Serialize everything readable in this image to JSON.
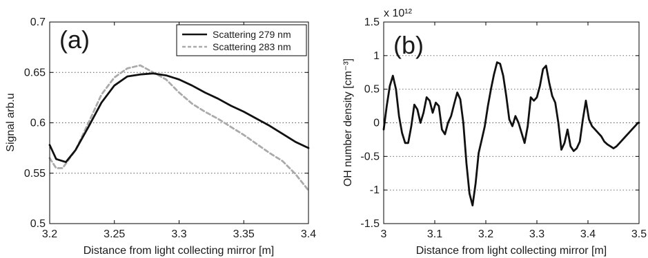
{
  "chart_data": [
    {
      "type": "line",
      "panel_label": "(a)",
      "xlabel": "Distance from light collecting mirror [m]",
      "ylabel": "Signal arb.u",
      "xlim": [
        3.2,
        3.4
      ],
      "ylim": [
        0.5,
        0.7
      ],
      "xticks": [
        "3.2",
        "3.25",
        "3.3",
        "3.35",
        "3.4"
      ],
      "yticks": [
        "0.5",
        "0.55",
        "0.6",
        "0.65",
        "0.7"
      ],
      "grid": "dotted horizontal",
      "legend_position": "top-right",
      "series": [
        {
          "name": "Scattering 279 nm",
          "color": "#111111",
          "style": "solid",
          "x": [
            3.2,
            3.205,
            3.2125,
            3.22,
            3.23,
            3.24,
            3.25,
            3.26,
            3.27,
            3.28,
            3.29,
            3.3,
            3.31,
            3.32,
            3.33,
            3.34,
            3.35,
            3.36,
            3.37,
            3.38,
            3.39,
            3.4
          ],
          "y": [
            0.578,
            0.564,
            0.561,
            0.573,
            0.596,
            0.62,
            0.637,
            0.646,
            0.648,
            0.649,
            0.647,
            0.643,
            0.637,
            0.63,
            0.624,
            0.617,
            0.611,
            0.604,
            0.597,
            0.589,
            0.581,
            0.575
          ]
        },
        {
          "name": "Scattering 283 nm",
          "color": "#aaaaaa",
          "style": "dashed",
          "x": [
            3.2,
            3.205,
            3.21,
            3.22,
            3.23,
            3.24,
            3.25,
            3.26,
            3.27,
            3.28,
            3.29,
            3.3,
            3.31,
            3.32,
            3.33,
            3.34,
            3.35,
            3.36,
            3.37,
            3.38,
            3.39,
            3.4
          ],
          "y": [
            0.565,
            0.555,
            0.555,
            0.573,
            0.6,
            0.628,
            0.645,
            0.654,
            0.657,
            0.65,
            0.643,
            0.63,
            0.619,
            0.611,
            0.604,
            0.596,
            0.588,
            0.579,
            0.57,
            0.562,
            0.549,
            0.533
          ]
        }
      ]
    },
    {
      "type": "line",
      "panel_label": "(b)",
      "xlabel": "Distance from light collecting mirror [m]",
      "ylabel": "OH number density [cm⁻³]",
      "y_multiplier": "x 10¹²",
      "xlim": [
        3.0,
        3.5
      ],
      "ylim": [
        -1.5,
        1.5
      ],
      "xticks": [
        "3",
        "3.1",
        "3.2",
        "3.3",
        "3.4",
        "3.5"
      ],
      "yticks": [
        "-1.5",
        "-1",
        "-0.5",
        "0",
        "0.5",
        "1",
        "1.5"
      ],
      "grid": "dotted horizontal",
      "series": [
        {
          "color": "#111111",
          "style": "solid",
          "x": [
            3.0,
            3.006,
            3.012,
            3.018,
            3.024,
            3.03,
            3.036,
            3.042,
            3.048,
            3.054,
            3.06,
            3.066,
            3.072,
            3.078,
            3.084,
            3.09,
            3.096,
            3.102,
            3.108,
            3.114,
            3.12,
            3.126,
            3.132,
            3.138,
            3.144,
            3.15,
            3.156,
            3.162,
            3.168,
            3.174,
            3.18,
            3.186,
            3.192,
            3.198,
            3.204,
            3.21,
            3.216,
            3.222,
            3.228,
            3.234,
            3.24,
            3.246,
            3.252,
            3.258,
            3.264,
            3.27,
            3.276,
            3.282,
            3.288,
            3.294,
            3.3,
            3.306,
            3.312,
            3.318,
            3.324,
            3.33,
            3.336,
            3.342,
            3.348,
            3.354,
            3.36,
            3.366,
            3.372,
            3.378,
            3.384,
            3.39,
            3.396,
            3.402,
            3.408,
            3.414,
            3.42,
            3.426,
            3.432,
            3.438,
            3.444,
            3.45,
            3.456,
            3.462,
            3.468,
            3.474,
            3.48,
            3.486,
            3.492,
            3.498,
            3.5
          ],
          "y": [
            -0.1,
            0.25,
            0.55,
            0.7,
            0.5,
            0.1,
            -0.15,
            -0.3,
            -0.3,
            -0.05,
            0.27,
            0.2,
            0.0,
            0.15,
            0.38,
            0.33,
            0.15,
            0.3,
            0.25,
            -0.1,
            -0.17,
            0.0,
            0.1,
            0.28,
            0.45,
            0.35,
            0.0,
            -0.6,
            -1.05,
            -1.23,
            -0.9,
            -0.45,
            -0.25,
            -0.05,
            0.25,
            0.5,
            0.72,
            0.9,
            0.88,
            0.7,
            0.4,
            0.05,
            -0.05,
            0.1,
            0.0,
            -0.15,
            -0.3,
            -0.05,
            0.38,
            0.33,
            0.38,
            0.55,
            0.8,
            0.85,
            0.6,
            0.4,
            0.3,
            0.0,
            -0.4,
            -0.3,
            -0.1,
            -0.35,
            -0.42,
            -0.38,
            -0.28,
            0.05,
            0.33,
            0.05,
            -0.05,
            -0.1,
            -0.15,
            -0.2,
            -0.28,
            -0.32,
            -0.35,
            -0.38,
            -0.35,
            -0.3,
            -0.25,
            -0.2,
            -0.15,
            -0.1,
            -0.05,
            0.0,
            0.0
          ]
        }
      ]
    }
  ]
}
